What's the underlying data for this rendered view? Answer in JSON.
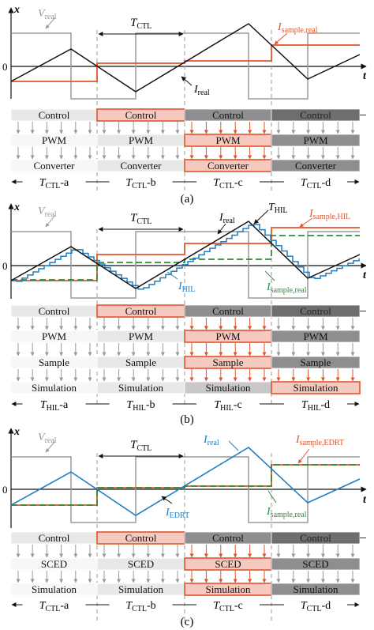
{
  "colors": {
    "black": "#111111",
    "gray": "#9a9a9a",
    "orange": "#e0552a",
    "orange_fill": "#f5c9bf",
    "blue": "#1f7fc4",
    "green": "#2e8b3a",
    "box_light": "#e8e8e8",
    "box_mid": "#c8c8c8",
    "box_dark": "#8e8e8e",
    "box_darker": "#6e6e6e",
    "box_white": "#f7f7f7"
  },
  "common": {
    "x_axis": "x",
    "t_axis": "t",
    "zero": "0"
  },
  "panels": [
    {
      "caption": "(a)",
      "labels": {
        "v_real": "V",
        "v_real_sub": "real",
        "t_ctl": "T",
        "t_ctl_sub": "CTL",
        "i_sample": "I",
        "i_sample_sub": "sample,real",
        "i_real": "I",
        "i_real_sub": "real"
      },
      "rows": [
        [
          "Control",
          "Control",
          "Control",
          "Control"
        ],
        [
          "PWM",
          "PWM",
          "PWM",
          "PWM"
        ],
        [
          "Converter",
          "Converter",
          "Converter",
          "Converter"
        ]
      ],
      "periods": [
        {
          "main": "T",
          "sub": "CTL",
          "suffix": "-a"
        },
        {
          "main": "T",
          "sub": "CTL",
          "suffix": "-b"
        },
        {
          "main": "T",
          "sub": "CTL",
          "suffix": "-c"
        },
        {
          "main": "T",
          "sub": "CTL",
          "suffix": "-d"
        }
      ]
    },
    {
      "caption": "(b)",
      "labels": {
        "v_real": "V",
        "v_real_sub": "real",
        "t_ctl": "T",
        "t_ctl_sub": "CTL",
        "i_real": "I",
        "i_real_sub": "real",
        "t_hil": "T",
        "t_hil_sub": "HIL",
        "i_sample_hil": "I",
        "i_sample_hil_sub": "sample,HIL",
        "i_hil": "I",
        "i_hil_sub": "HIL",
        "i_sample_real": "I",
        "i_sample_real_sub": "sample,real"
      },
      "rows": [
        [
          "Control",
          "Control",
          "Control",
          "Control"
        ],
        [
          "PWM",
          "PWM",
          "PWM",
          "PWM"
        ],
        [
          "Sample",
          "Sample",
          "Sample",
          "Sample"
        ],
        [
          "Simulation",
          "Simulation",
          "Simulation",
          "Simulation"
        ]
      ],
      "periods": [
        {
          "main": "T",
          "sub": "HIL",
          "suffix": "-a"
        },
        {
          "main": "T",
          "sub": "HIL",
          "suffix": "-b"
        },
        {
          "main": "T",
          "sub": "HIL",
          "suffix": "-c"
        },
        {
          "main": "T",
          "sub": "HIL",
          "suffix": "-d"
        }
      ]
    },
    {
      "caption": "(c)",
      "labels": {
        "v_real": "V",
        "v_real_sub": "real",
        "t_ctl": "T",
        "t_ctl_sub": "CTL",
        "i_real": "I",
        "i_real_sub": "real",
        "i_sample_edrt": "I",
        "i_sample_edrt_sub": "sample,EDRT",
        "i_edrt": "I",
        "i_edrt_sub": "EDRT",
        "i_sample_real": "I",
        "i_sample_real_sub": "sample,real"
      },
      "rows": [
        [
          "Control",
          "Control",
          "Control",
          "Control"
        ],
        [
          "SCED",
          "SCED",
          "SCED",
          "SCED"
        ],
        [
          "Simulation",
          "Simulation",
          "Simulation",
          "Simulation"
        ]
      ],
      "periods": [
        {
          "main": "T",
          "sub": "CTL",
          "suffix": "-a"
        },
        {
          "main": "T",
          "sub": "CTL",
          "suffix": "-b"
        },
        {
          "main": "T",
          "sub": "CTL",
          "suffix": "-c"
        },
        {
          "main": "T",
          "sub": "CTL",
          "suffix": "-d"
        }
      ]
    }
  ]
}
